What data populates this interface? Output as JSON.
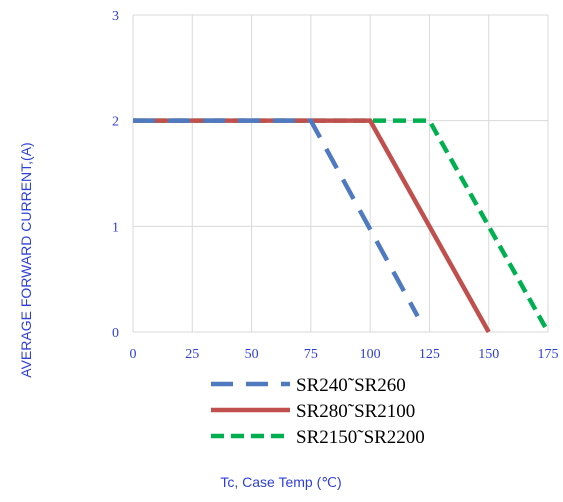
{
  "chart_data": {
    "type": "line",
    "xlabel": "Tc, Case Temp (℃)",
    "ylabel": "AVERAGE FORWARD CURRENT,(A)",
    "x_ticks": [
      0,
      25,
      50,
      75,
      100,
      125,
      150,
      175
    ],
    "y_ticks": [
      0,
      1,
      2,
      3
    ],
    "xlim": [
      0,
      175
    ],
    "ylim": [
      0,
      3
    ],
    "grid": true,
    "legend_position": "bottom",
    "series": [
      {
        "name": "SR240˜SR260",
        "color": "#4f7ac0",
        "dash": "dashed",
        "points": [
          [
            0,
            2
          ],
          [
            75,
            2
          ],
          [
            120,
            0.15
          ]
        ]
      },
      {
        "name": "SR280˜SR2100",
        "color": "#c0504d",
        "dash": "solid",
        "points": [
          [
            0,
            2
          ],
          [
            100,
            2
          ],
          [
            150,
            0
          ]
        ]
      },
      {
        "name": "SR2150˜SR2200",
        "color": "#00b050",
        "dash": "dashed-short",
        "points": [
          [
            0,
            2
          ],
          [
            125,
            2
          ],
          [
            175,
            0
          ]
        ]
      }
    ]
  }
}
